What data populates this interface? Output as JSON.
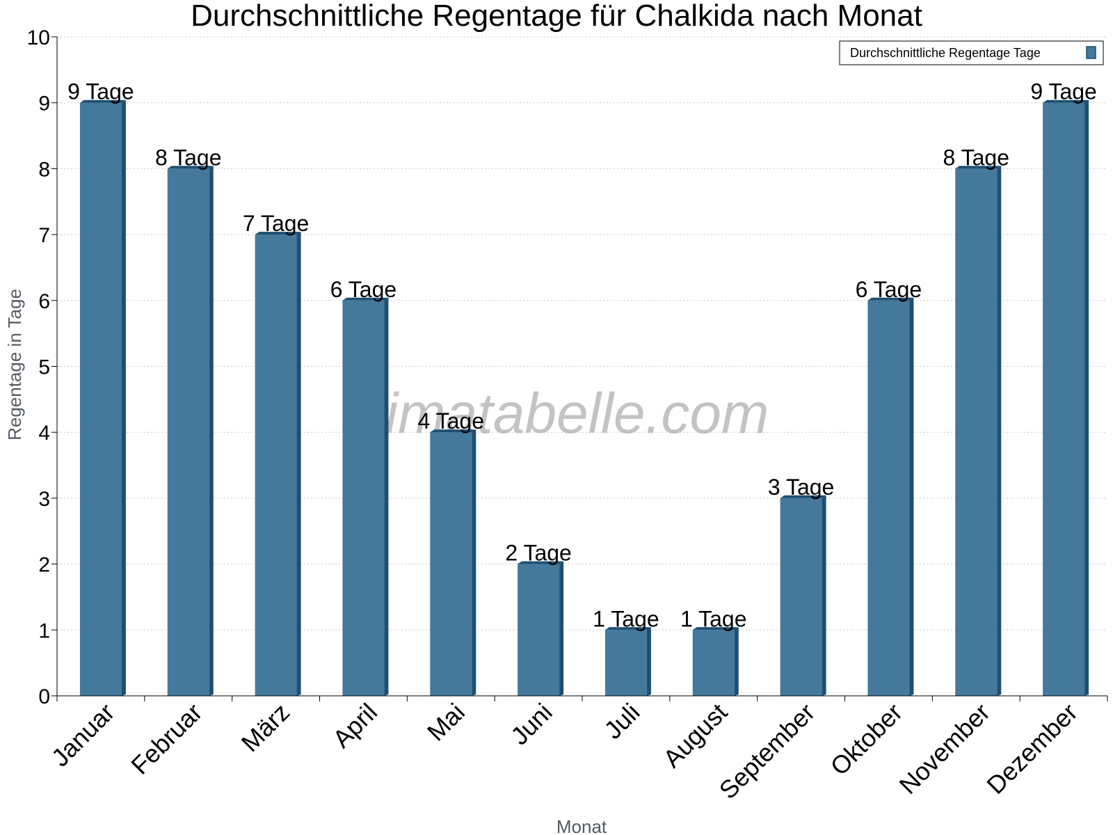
{
  "chart_data": {
    "type": "bar",
    "title": "Durchschnittliche Regentage für Chalkida nach Monat",
    "xlabel": "Monat",
    "ylabel": "Regentage in Tage",
    "ylim": [
      0,
      10
    ],
    "yticks": [
      "0",
      "1",
      "2",
      "3",
      "4",
      "5",
      "6",
      "7",
      "8",
      "9",
      "10"
    ],
    "grid": true,
    "legend_position": "top-right",
    "categories": [
      "Januar",
      "Februar",
      "März",
      "April",
      "Mai",
      "Juni",
      "Juli",
      "August",
      "September",
      "Oktober",
      "November",
      "Dezember"
    ],
    "series": [
      {
        "name": "Durchschnittliche Regentage Tage",
        "values": [
          9,
          8,
          7,
          6,
          4,
          2,
          1,
          1,
          3,
          6,
          8,
          9
        ],
        "labels": [
          "9 Tage",
          "8 Tage",
          "7 Tage",
          "6 Tage",
          "4 Tage",
          "2 Tage",
          "1 Tage",
          "1 Tage",
          "3 Tage",
          "6 Tage",
          "8 Tage",
          "9 Tage"
        ],
        "color": "#44799b",
        "shade_color": "#1e4f72"
      }
    ],
    "watermark": "klimatabelle.com"
  }
}
